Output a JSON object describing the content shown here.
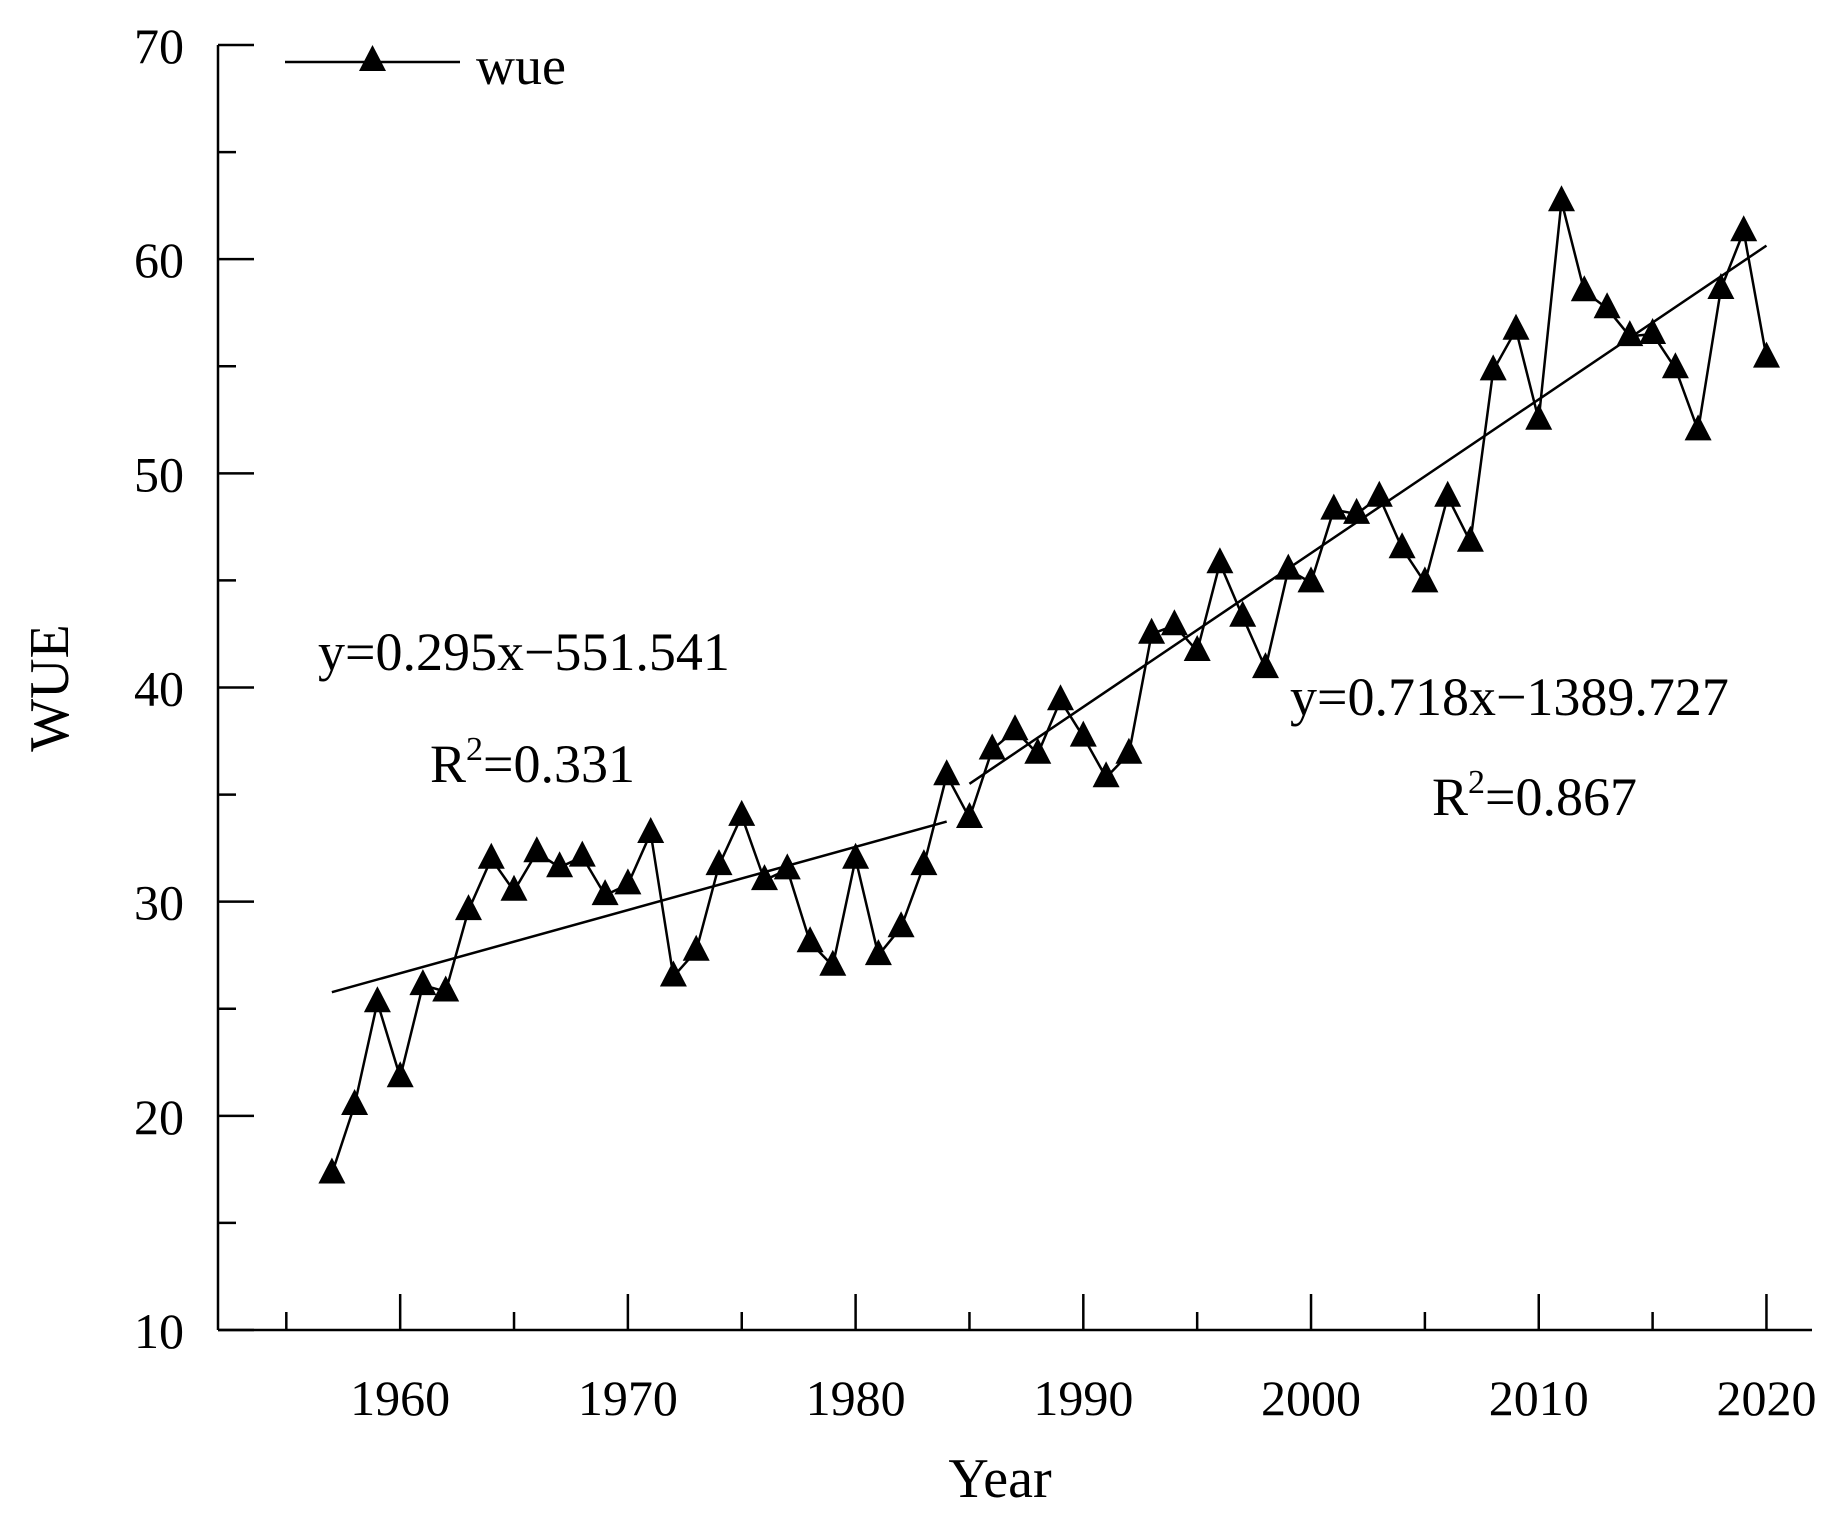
{
  "chart_data": {
    "type": "line",
    "title": "",
    "xlabel": "Year",
    "ylabel": "WUE",
    "xlim": [
      1952,
      2022
    ],
    "ylim": [
      10,
      70
    ],
    "xticks": [
      1960,
      1970,
      1980,
      1990,
      2000,
      2010,
      2020
    ],
    "xtick_labels": [
      "1960",
      "1970",
      "1980",
      "1990",
      "2000",
      "2010",
      "2020"
    ],
    "yticks": [
      10,
      20,
      30,
      40,
      50,
      60,
      70
    ],
    "ytick_labels": [
      "10",
      "20",
      "30",
      "40",
      "50",
      "60",
      "70"
    ],
    "legend": {
      "position": "top-left",
      "entries": [
        "wue"
      ]
    },
    "series": [
      {
        "name": "wue",
        "marker": "triangle",
        "x": [
          1957,
          1958,
          1959,
          1960,
          1961,
          1962,
          1963,
          1964,
          1965,
          1966,
          1967,
          1968,
          1969,
          1970,
          1971,
          1972,
          1973,
          1974,
          1975,
          1976,
          1977,
          1978,
          1979,
          1980,
          1981,
          1982,
          1983,
          1984,
          1985,
          1986,
          1987,
          1988,
          1989,
          1990,
          1991,
          1992,
          1993,
          1994,
          1995,
          1996,
          1997,
          1998,
          1999,
          2000,
          2001,
          2002,
          2003,
          2004,
          2005,
          2006,
          2007,
          2008,
          2009,
          2010,
          2011,
          2012,
          2013,
          2014,
          2015,
          2016,
          2017,
          2018,
          2019,
          2020
        ],
        "values": [
          17.3,
          20.5,
          25.3,
          21.8,
          26.1,
          25.8,
          29.6,
          32.0,
          30.5,
          32.3,
          31.6,
          32.1,
          30.3,
          30.8,
          33.2,
          26.5,
          27.7,
          31.7,
          34.0,
          31.0,
          31.5,
          28.1,
          27.0,
          32.0,
          27.5,
          28.8,
          31.7,
          35.9,
          33.9,
          37.1,
          38.0,
          36.9,
          39.4,
          37.7,
          35.8,
          36.9,
          42.5,
          42.9,
          41.7,
          45.8,
          43.3,
          40.9,
          45.5,
          44.9,
          48.3,
          48.1,
          48.9,
          46.5,
          44.9,
          48.9,
          46.8,
          54.8,
          56.7,
          52.5,
          62.7,
          58.5,
          57.7,
          56.4,
          56.5,
          54.9,
          52.0,
          58.6,
          61.3,
          55.4
        ]
      }
    ],
    "trendlines": [
      {
        "slope": 0.295,
        "intercept": -551.541,
        "x_range": [
          1957,
          1984
        ],
        "equation": "y=0.295x−551.541",
        "r2_prefix": "R",
        "r2_sup": "2",
        "r2_value": "=0.331"
      },
      {
        "slope": 0.718,
        "intercept": -1389.727,
        "x_range": [
          1985,
          2020
        ],
        "equation": "y=0.718x−1389.727",
        "r2_prefix": "R",
        "r2_sup": "2",
        "r2_value": "=0.867"
      }
    ]
  }
}
